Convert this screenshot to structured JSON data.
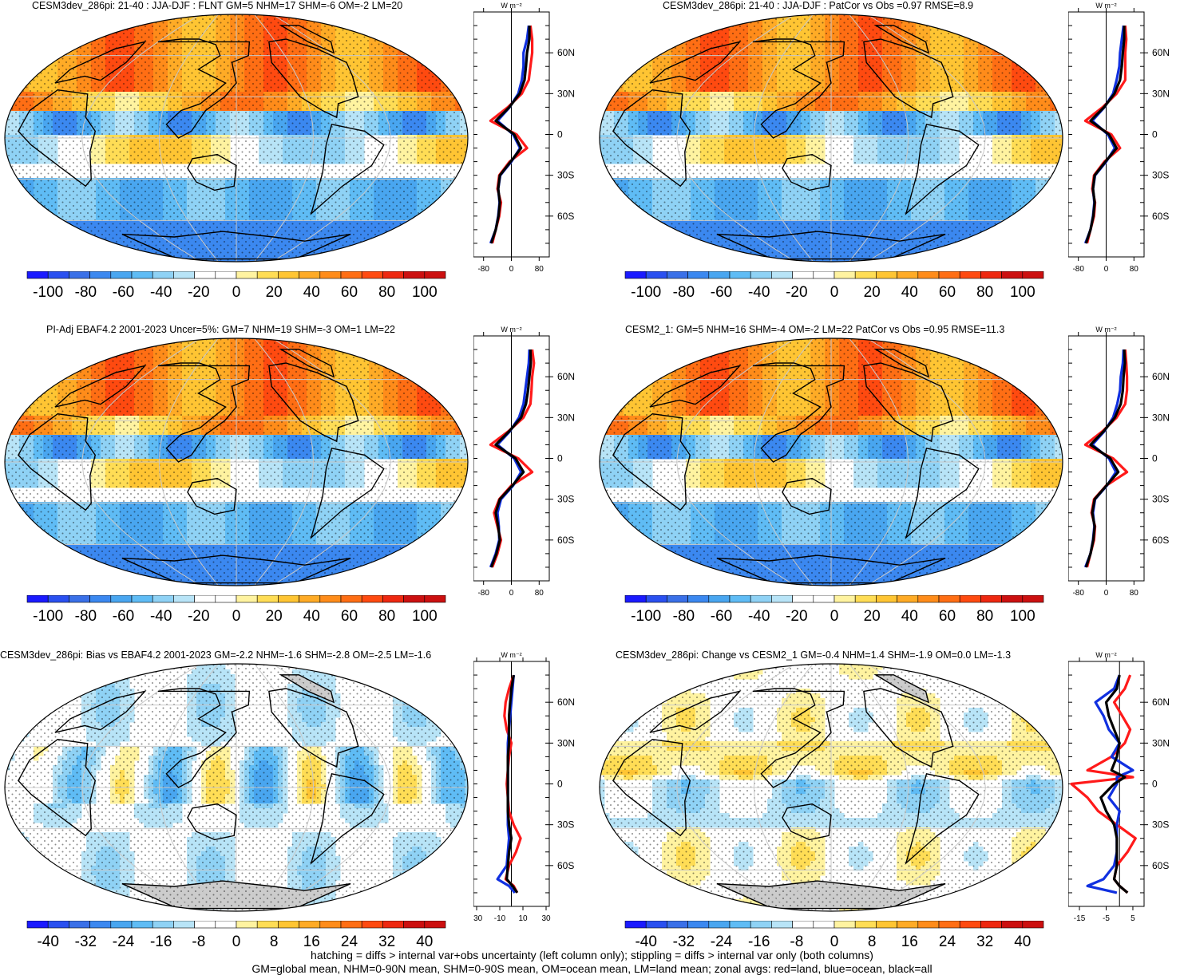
{
  "colors": {
    "red": "#ff1a1a",
    "blue": "#1030e0",
    "black": "#000000",
    "land_gray": "#cccccc",
    "palette": [
      "#1a1aff",
      "#2a50f0",
      "#3a70e8",
      "#3b88f0",
      "#49a6f0",
      "#5fbcf5",
      "#8fd2f5",
      "#b8e4f7",
      "#ffffff",
      "#ffffff",
      "#fff3a0",
      "#ffdd55",
      "#ffc533",
      "#ffab26",
      "#ff8c1a",
      "#ff6e14",
      "#ff4a10",
      "#ee2810",
      "#cc1010"
    ]
  },
  "panels": [
    {
      "id": "p1",
      "title": "CESM3dev_286pi: 21-40 : JJA-DJF : FLNT GM=5 NHM=17 SHM=-6 OM=-2 LM=20",
      "field": "main",
      "colorbar_labels": [
        "-100",
        "-80",
        "-60",
        "-40",
        "-20",
        "0",
        "20",
        "40",
        "60",
        "80",
        "100"
      ],
      "profile_unit": "W m⁻²",
      "profile_xticks": [
        "-80",
        "0",
        "80"
      ],
      "profile_lat_labels": [
        "60N",
        "30N",
        "0",
        "30S",
        "60S"
      ],
      "profile_xrange": [
        -100,
        100
      ],
      "profile": {
        "lat": [
          -80,
          -70,
          -60,
          -50,
          -40,
          -30,
          -20,
          -10,
          0,
          10,
          20,
          30,
          40,
          50,
          60,
          70,
          80
        ],
        "red": [
          -55,
          -45,
          -35,
          -30,
          -40,
          -35,
          -5,
          45,
          15,
          -60,
          -10,
          30,
          50,
          55,
          60,
          60,
          55
        ],
        "blue": [
          -60,
          -45,
          -38,
          -34,
          -38,
          -32,
          0,
          25,
          5,
          -40,
          -5,
          20,
          30,
          35,
          35,
          45,
          50
        ],
        "black": [
          -58,
          -45,
          -37,
          -33,
          -38,
          -33,
          -2,
          28,
          8,
          -45,
          -6,
          24,
          38,
          42,
          45,
          52,
          52
        ]
      }
    },
    {
      "id": "p2",
      "title": "CESM3dev_286pi: 21-40 : JJA-DJF : PatCor vs Obs =0.97 RMSE=8.9",
      "field": "main",
      "colorbar_labels": [
        "-100",
        "-80",
        "-60",
        "-40",
        "-20",
        "0",
        "20",
        "40",
        "60",
        "80",
        "100"
      ],
      "profile_unit": "W m⁻²",
      "profile_xticks": [
        "-80",
        "0",
        "80"
      ],
      "profile_lat_labels": [
        "60N",
        "30N",
        "0",
        "30S",
        "60S"
      ],
      "profile_xrange": [
        -100,
        100
      ],
      "profile": {
        "lat": [
          -80,
          -70,
          -60,
          -50,
          -40,
          -30,
          -20,
          -10,
          0,
          10,
          20,
          30,
          40,
          50,
          60,
          70,
          80
        ],
        "red": [
          -55,
          -45,
          -35,
          -32,
          -40,
          -35,
          -5,
          40,
          15,
          -60,
          -10,
          30,
          55,
          55,
          55,
          58,
          55
        ],
        "blue": [
          -60,
          -45,
          -38,
          -34,
          -38,
          -32,
          0,
          25,
          5,
          -40,
          -5,
          20,
          30,
          38,
          40,
          45,
          50
        ],
        "black": [
          -58,
          -45,
          -37,
          -33,
          -38,
          -33,
          -2,
          30,
          8,
          -45,
          -6,
          24,
          40,
          45,
          48,
          52,
          52
        ]
      }
    },
    {
      "id": "p3",
      "title": "PI-Adj EBAF4.2 2001-2023 Uncer=5%: GM=7 NHM=19 SHM=-3 OM=1 LM=22",
      "field": "main",
      "colorbar_labels": [
        "-100",
        "-80",
        "-60",
        "-40",
        "-20",
        "0",
        "20",
        "40",
        "60",
        "80",
        "100"
      ],
      "profile_unit": "W m⁻²",
      "profile_xticks": [
        "-80",
        "0",
        "80"
      ],
      "profile_lat_labels": [
        "60N",
        "30N",
        "0",
        "30S",
        "60S"
      ],
      "profile_xrange": [
        -100,
        100
      ],
      "profile": {
        "lat": [
          -80,
          -70,
          -60,
          -50,
          -40,
          -30,
          -20,
          -10,
          0,
          10,
          20,
          30,
          40,
          50,
          60,
          70,
          80
        ],
        "red": [
          -55,
          -40,
          -30,
          -40,
          -50,
          -35,
          0,
          60,
          20,
          -60,
          -8,
          35,
          55,
          58,
          60,
          65,
          60
        ],
        "blue": [
          -60,
          -45,
          -35,
          -36,
          -40,
          -30,
          5,
          28,
          8,
          -40,
          -4,
          22,
          35,
          40,
          45,
          50,
          52
        ],
        "black": [
          -58,
          -43,
          -33,
          -38,
          -45,
          -33,
          3,
          35,
          12,
          -45,
          -6,
          28,
          42,
          48,
          52,
          56,
          55
        ]
      }
    },
    {
      "id": "p4",
      "title": "CESM2_1: GM=5 NHM=16 SHM=-4 OM=-2 LM=22 PatCor vs Obs =0.95 RMSE=11.3",
      "field": "main",
      "colorbar_labels": [
        "-100",
        "-80",
        "-60",
        "-40",
        "-20",
        "0",
        "20",
        "40",
        "60",
        "80",
        "100"
      ],
      "profile_unit": "W m⁻²",
      "profile_xticks": [
        "-80",
        "0",
        "80"
      ],
      "profile_lat_labels": [
        "60N",
        "30N",
        "0",
        "30S",
        "60S"
      ],
      "profile_xrange": [
        -100,
        100
      ],
      "profile": {
        "lat": [
          -80,
          -70,
          -60,
          -50,
          -40,
          -30,
          -20,
          -10,
          0,
          10,
          20,
          30,
          40,
          50,
          60,
          70,
          80
        ],
        "red": [
          -55,
          -45,
          -35,
          -32,
          -42,
          -35,
          0,
          60,
          20,
          -60,
          -10,
          30,
          55,
          60,
          60,
          58,
          55
        ],
        "blue": [
          -60,
          -45,
          -38,
          -34,
          -38,
          -32,
          2,
          28,
          8,
          -40,
          -5,
          20,
          32,
          40,
          42,
          48,
          50
        ],
        "black": [
          -58,
          -45,
          -37,
          -33,
          -40,
          -33,
          1,
          35,
          12,
          -45,
          -7,
          25,
          42,
          48,
          50,
          54,
          52
        ]
      }
    },
    {
      "id": "p5",
      "title": "CESM3dev_286pi: Bias vs EBAF4.2 2001-2023 GM=-2.2 NHM=-1.6 SHM=-2.8 OM=-2.5 LM=-1.6",
      "field": "bias",
      "colorbar_labels": [
        "-40",
        "-32",
        "-24",
        "-16",
        "-8",
        "0",
        "8",
        "16",
        "24",
        "32",
        "40"
      ],
      "profile_unit": "W m⁻²",
      "profile_xticks": [
        "-30",
        "-10",
        "10",
        "30"
      ],
      "profile_lat_labels": [
        "60N",
        "30N",
        "0",
        "30S",
        "60S"
      ],
      "profile_xrange": [
        -30,
        30
      ],
      "profile": {
        "lat": [
          -80,
          -75,
          -70,
          -60,
          -50,
          -40,
          -30,
          -20,
          -10,
          0,
          10,
          20,
          30,
          40,
          50,
          60,
          70,
          80
        ],
        "red": [
          5,
          2,
          -5,
          -2,
          4,
          8,
          2,
          -2,
          -3,
          -4,
          -3,
          -2,
          0,
          -4,
          -6,
          -5,
          -2,
          2
        ],
        "blue": [
          3,
          -2,
          -12,
          -4,
          -3,
          -2,
          -3,
          -3,
          -3,
          -3,
          -3,
          -3,
          -3,
          -2,
          -1,
          0,
          1,
          2
        ],
        "black": [
          5,
          1,
          -4,
          -3,
          -2,
          0,
          -2,
          -3,
          -3,
          -3,
          -3,
          -3,
          -2,
          -2,
          -2,
          -1,
          0,
          2
        ]
      }
    },
    {
      "id": "p6",
      "title": "CESM3dev_286pi: Change vs CESM2_1 GM=-0.4 NHM=1.4 SHM=-1.9 OM=0.0 LM=-1.3",
      "field": "change",
      "colorbar_labels": [
        "-40",
        "-32",
        "-24",
        "-16",
        "-8",
        "0",
        "8",
        "16",
        "24",
        "32",
        "40"
      ],
      "profile_unit": "W m⁻²",
      "profile_xticks": [
        "-15",
        "-5",
        "5"
      ],
      "profile_lat_labels": [
        "60N",
        "30N",
        "0",
        "30S",
        "60S"
      ],
      "profile_xrange": [
        -18,
        8
      ],
      "profile": {
        "lat": [
          -80,
          -75,
          -70,
          -60,
          -50,
          -40,
          -30,
          -20,
          -10,
          0,
          5,
          10,
          20,
          30,
          40,
          50,
          60,
          70,
          80
        ],
        "red": [
          3,
          0,
          -2,
          -1,
          3,
          6,
          -1,
          -8,
          -12,
          -18,
          5,
          -12,
          -3,
          2,
          4,
          1,
          -2,
          2,
          4
        ],
        "blue": [
          -1,
          -12,
          -6,
          -2,
          -1,
          -1,
          -1,
          0,
          -4,
          -1,
          -1,
          5,
          -3,
          0,
          -4,
          -6,
          -9,
          -2,
          0
        ],
        "black": [
          3,
          0,
          -2,
          -1,
          -1,
          -1,
          -2,
          -5,
          -7,
          -2,
          2,
          -3,
          -1,
          0,
          -2,
          -4,
          -5,
          -1,
          0
        ]
      }
    }
  ],
  "footer": {
    "line1": "hatching = diffs > internal var+obs uncertainty (left column only); stippling = diffs > internal var only (both columns)",
    "line2": "GM=global mean, NHM=0-90N mean, SHM=0-90S mean, OM=ocean mean, LM=land mean; zonal avgs: red=land, blue=ocean, black=all"
  }
}
